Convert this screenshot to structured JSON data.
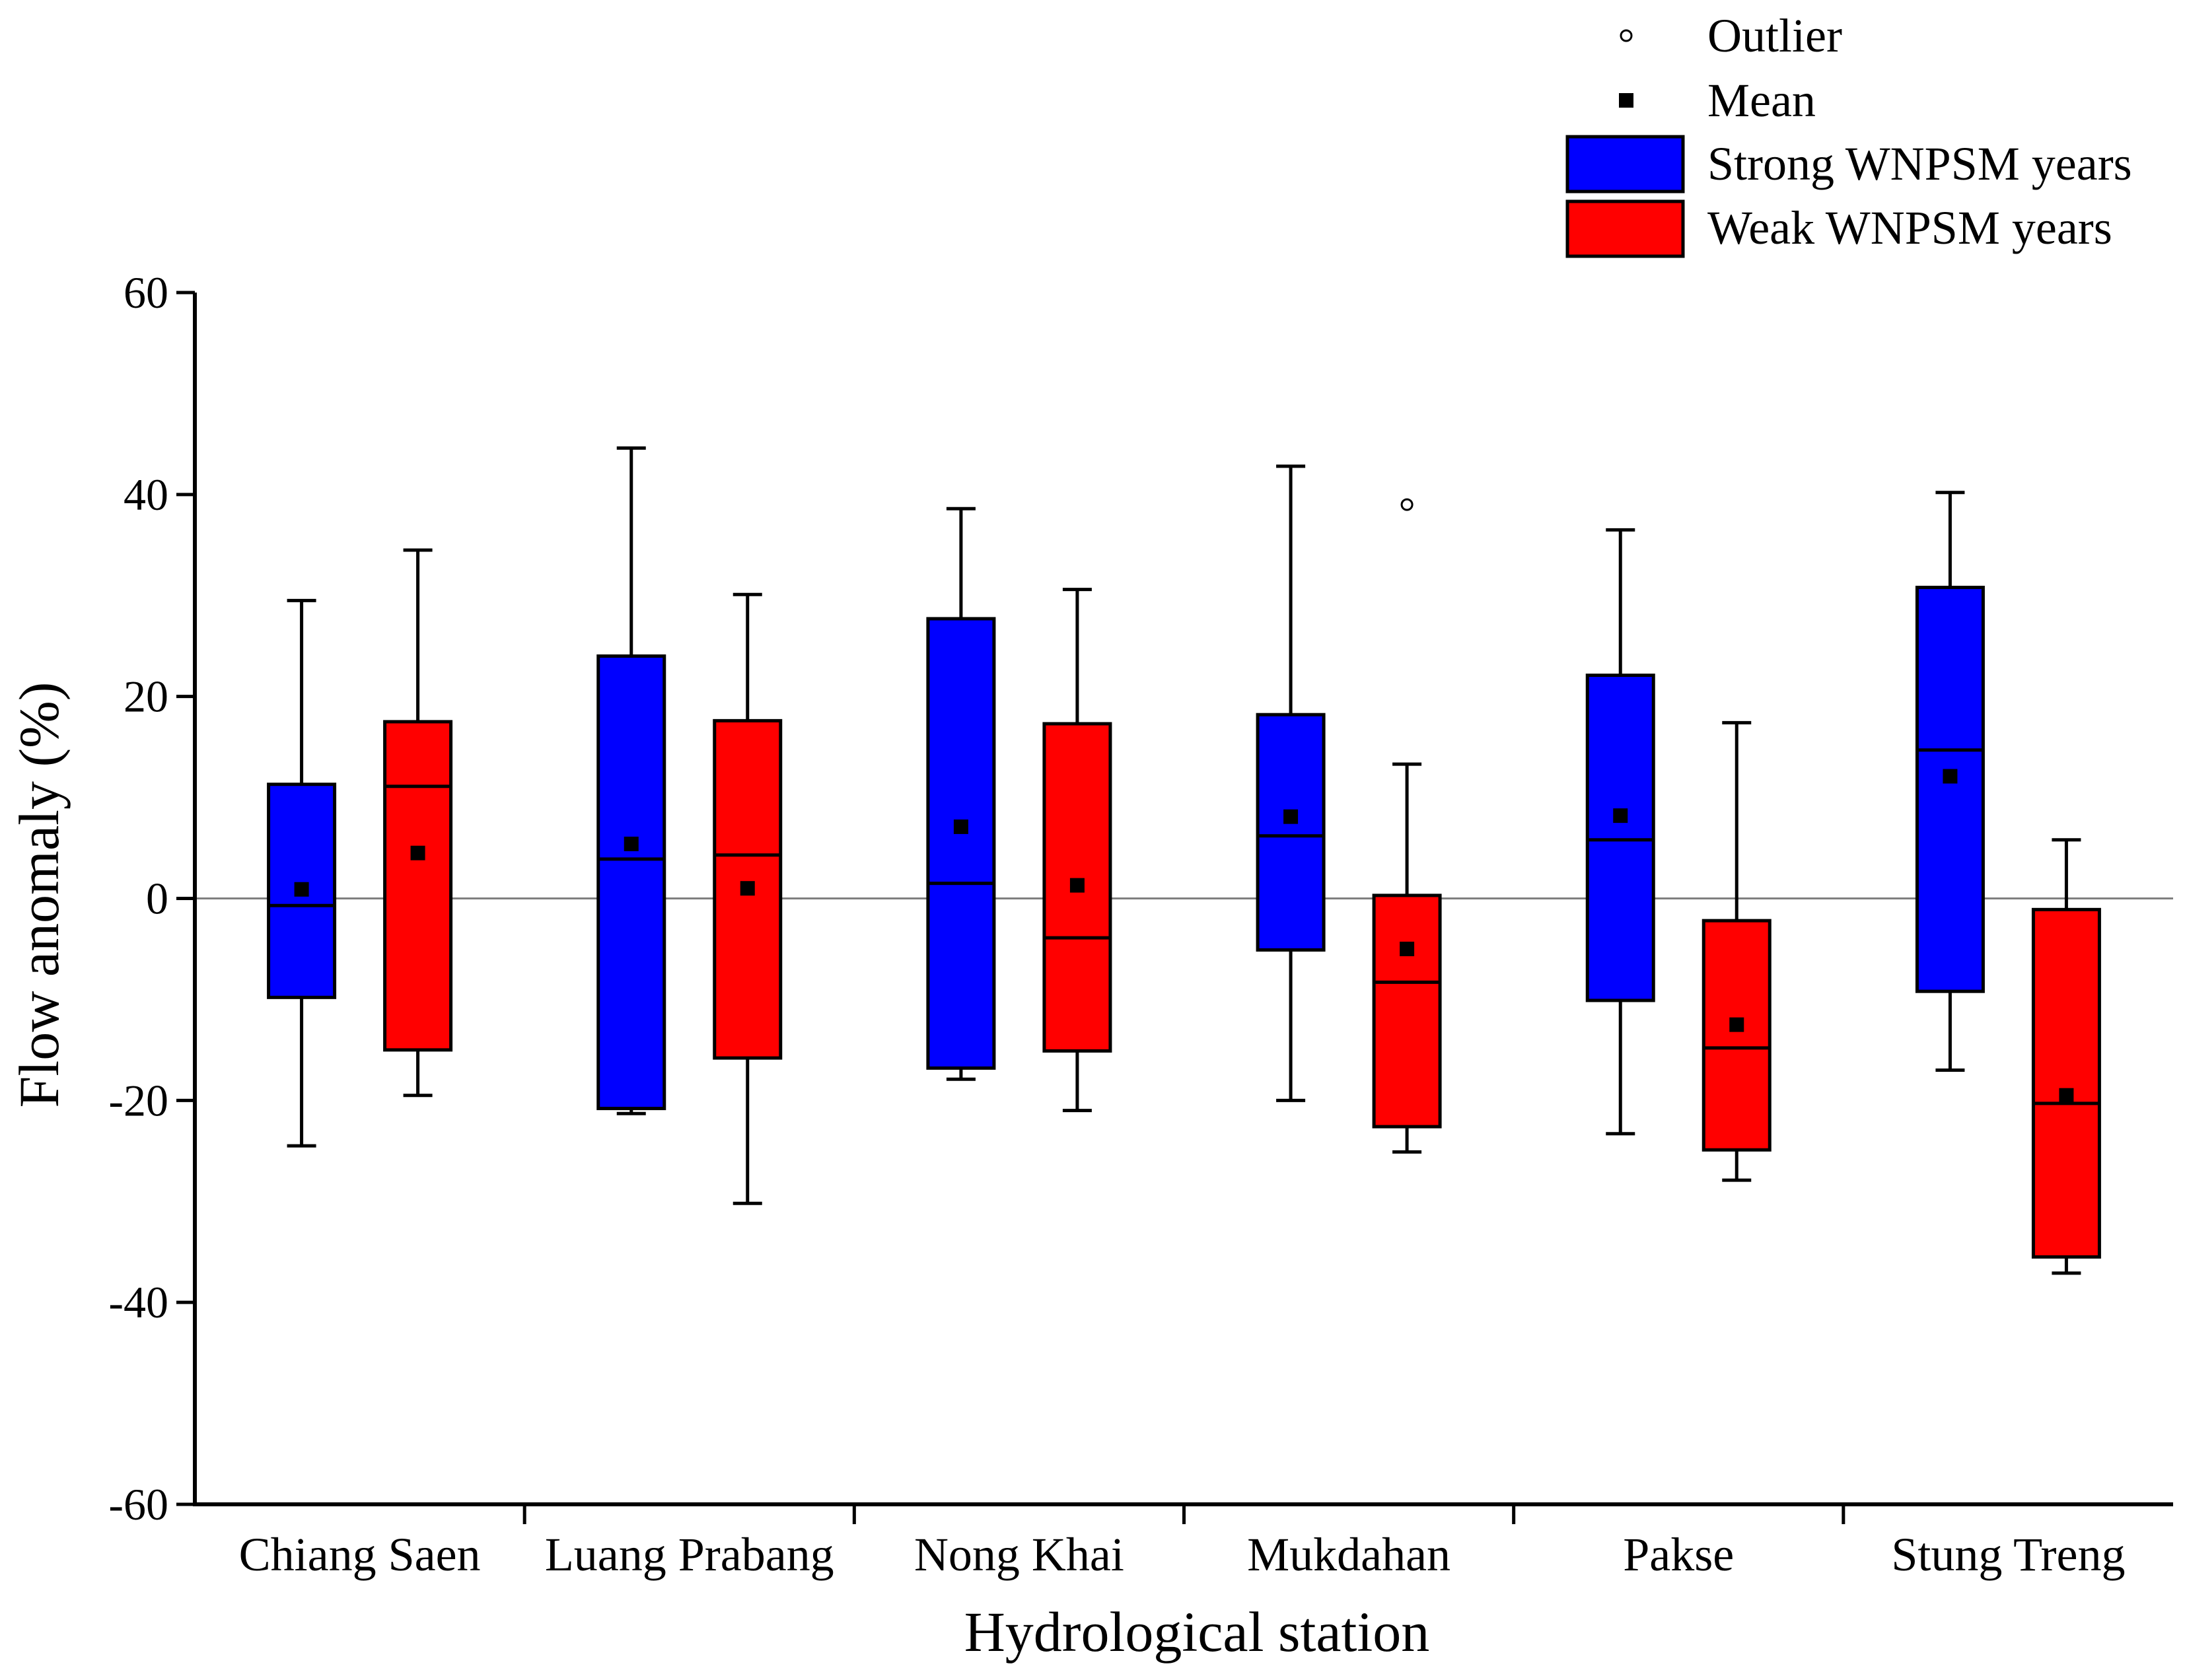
{
  "chart_data": {
    "type": "boxplot",
    "xlabel": "Hydrological station",
    "ylabel": "Flow anomaly (%)",
    "ylim": [
      -60,
      60
    ],
    "yticks": [
      -60,
      -40,
      -20,
      0,
      20,
      40,
      60
    ],
    "categories": [
      "Chiang Saen",
      "Luang Prabang",
      "Nong Khai",
      "Mukdahan",
      "Pakse",
      "Stung Treng"
    ],
    "colors": {
      "strong": "#0000ff",
      "weak": "#ff0000"
    },
    "legend": {
      "outlier": "Outlier",
      "mean": "Mean",
      "strong": "Strong WNPSM years",
      "weak": "Weak WNPSM years"
    },
    "series": [
      {
        "key": "strong",
        "name": "Strong WNPSM years",
        "boxes": [
          {
            "min": -24.5,
            "q1": -9.8,
            "median": -0.7,
            "q3": 11.3,
            "max": 29.5,
            "mean": 0.9,
            "outliers": []
          },
          {
            "min": -21.3,
            "q1": -20.8,
            "median": 3.9,
            "q3": 24.0,
            "max": 44.6,
            "mean": 5.4,
            "outliers": []
          },
          {
            "min": -17.9,
            "q1": -16.8,
            "median": 1.5,
            "q3": 27.7,
            "max": 38.6,
            "mean": 7.1,
            "outliers": []
          },
          {
            "min": -20.0,
            "q1": -5.1,
            "median": 6.2,
            "q3": 18.2,
            "max": 42.8,
            "mean": 8.1,
            "outliers": []
          },
          {
            "min": -23.3,
            "q1": -10.1,
            "median": 5.8,
            "q3": 22.1,
            "max": 36.5,
            "mean": 8.2,
            "outliers": []
          },
          {
            "min": -17.0,
            "q1": -9.2,
            "median": 14.7,
            "q3": 30.8,
            "max": 40.2,
            "mean": 12.1,
            "outliers": []
          }
        ]
      },
      {
        "key": "weak",
        "name": "Weak WNPSM years",
        "boxes": [
          {
            "min": -19.5,
            "q1": -15.0,
            "median": 11.1,
            "q3": 17.5,
            "max": 34.5,
            "mean": 4.5,
            "outliers": []
          },
          {
            "min": -30.2,
            "q1": -15.8,
            "median": 4.3,
            "q3": 17.6,
            "max": 30.1,
            "mean": 1.0,
            "outliers": []
          },
          {
            "min": -21.0,
            "q1": -15.1,
            "median": -3.9,
            "q3": 17.3,
            "max": 30.6,
            "mean": 1.3,
            "outliers": []
          },
          {
            "min": -25.1,
            "q1": -22.6,
            "median": -8.3,
            "q3": 0.3,
            "max": 13.3,
            "mean": -5.0,
            "outliers": [
              39.0
            ]
          },
          {
            "min": -27.9,
            "q1": -24.9,
            "median": -14.8,
            "q3": -2.2,
            "max": 17.4,
            "mean": -12.5,
            "outliers": []
          },
          {
            "min": -37.1,
            "q1": -35.5,
            "median": -20.3,
            "q3": -1.1,
            "max": 5.8,
            "mean": -19.5,
            "outliers": []
          }
        ]
      }
    ]
  }
}
